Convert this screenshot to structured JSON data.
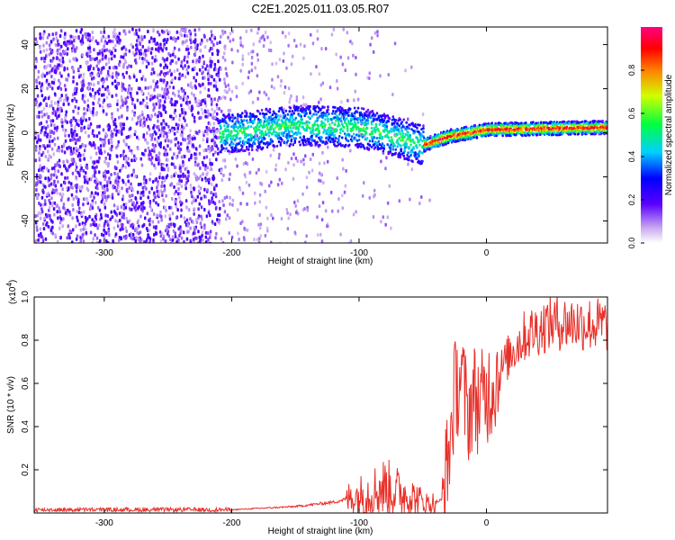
{
  "title": "C2E1.2025.011.03.05.R07",
  "chart_data": [
    {
      "type": "heatmap",
      "xlabel": "Height of straight line (km)",
      "ylabel": "Frequency (Hz)",
      "xlim": [
        -355,
        95
      ],
      "ylim": [
        -50,
        48
      ],
      "xticks": [
        -300,
        -200,
        -100,
        0
      ],
      "yticks": [
        -40,
        -20,
        0,
        20,
        40
      ],
      "colorbar": {
        "label": "Normalized spectral amplitude",
        "range": [
          0.0,
          1.0
        ],
        "ticks": [
          "0.0",
          "0.2",
          "0.4",
          "0.6",
          "0.8"
        ],
        "colormap": "rainbow"
      },
      "ridge": [
        {
          "x": -210,
          "y": 0
        },
        {
          "x": -150,
          "y": 4
        },
        {
          "x": -100,
          "y": 3
        },
        {
          "x": -80,
          "y": 0
        },
        {
          "x": -50,
          "y": -5
        },
        {
          "x": -30,
          "y": -1
        },
        {
          "x": -20,
          "y": 0
        },
        {
          "x": 0,
          "y": 2
        },
        {
          "x": 90,
          "y": 3
        }
      ],
      "noise_region_x": [
        -355,
        -210
      ]
    },
    {
      "type": "line",
      "xlabel": "Height of straight line (km)",
      "ylabel": "SNR (10 * v/v)",
      "y_multiplier": "(x10",
      "y_multiplier_exp": "4",
      "y_multiplier_close": ")",
      "xlim": [
        -355,
        95
      ],
      "ylim": [
        0,
        1.0
      ],
      "xticks": [
        -300,
        -200,
        -100,
        0
      ],
      "yticks": [
        0.2,
        0.4,
        0.6,
        0.8,
        1.0
      ],
      "color": "#e8302a",
      "series": [
        {
          "x": [
            -355,
            -300,
            -250,
            -200,
            -150,
            -120,
            -100,
            -80,
            -60,
            -45,
            -35,
            -30,
            -25,
            -20,
            -15,
            -10,
            -5,
            0,
            10,
            20,
            30,
            50,
            70,
            90
          ],
          "y": [
            0.01,
            0.01,
            0.01,
            0.015,
            0.03,
            0.05,
            0.08,
            0.12,
            0.08,
            0.04,
            0.06,
            0.25,
            0.55,
            0.65,
            0.45,
            0.55,
            0.5,
            0.55,
            0.65,
            0.75,
            0.82,
            0.88,
            0.88,
            0.87
          ]
        }
      ]
    }
  ]
}
